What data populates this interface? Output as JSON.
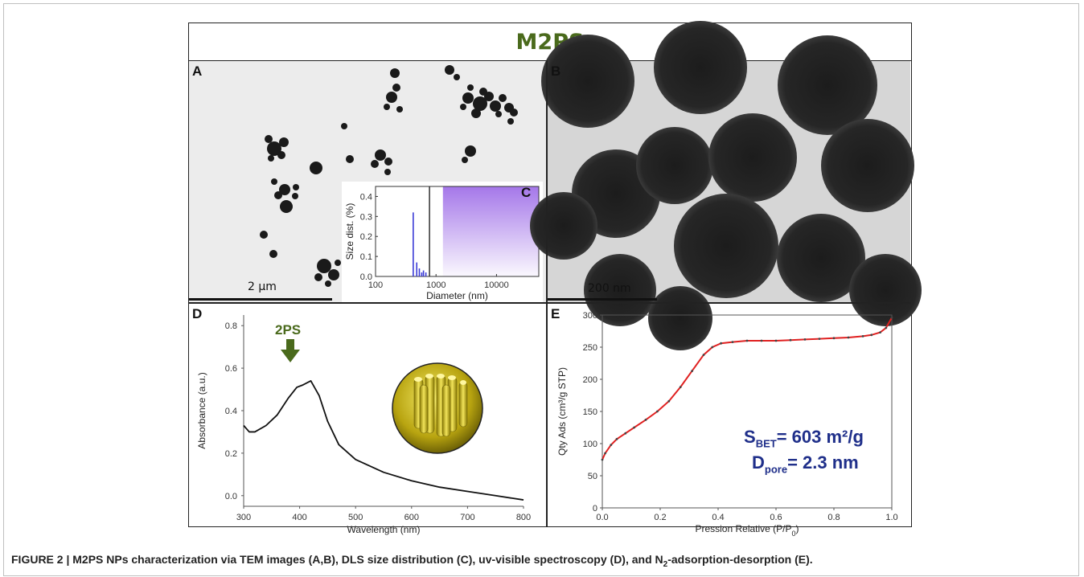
{
  "figure": {
    "title": "M2PS",
    "panels": {
      "a": "A",
      "b": "B",
      "c": "C",
      "d": "D",
      "e": "E"
    },
    "scale_a": "2 µm",
    "scale_b": "200 nm",
    "arrow_label": "2PS",
    "bet": {
      "s_main": "S",
      "s_sub": "BET",
      "s_val": "= 603 m²/g",
      "d_main": "D",
      "d_sub": "pore",
      "d_val": "= 2.3 nm"
    },
    "caption": {
      "main": "FIGURE 2 | M2PS NPs characterization via TEM images (A,B), DLS size distribution (C), uv-visible spectroscopy (D), and N",
      "sub": "2",
      "tail": "-adsorption-desorption (E)."
    }
  },
  "chart_data": [
    {
      "id": "C",
      "type": "bar",
      "xlabel": "Diameter (nm)",
      "ylabel": "Size dist. (%)",
      "xscale": "log",
      "xlim": [
        100,
        50000
      ],
      "ylim": [
        0,
        0.45
      ],
      "xticks": [
        100,
        1000,
        10000
      ],
      "xticklabels": [
        "100",
        "1000",
        "10000"
      ],
      "yticks": [
        0,
        0.1,
        0.2,
        0.3,
        0.4
      ],
      "yticklabels": [
        "0.0",
        "0.1",
        "0.2",
        "0.3",
        "0.4"
      ],
      "bars": [
        {
          "x": 420,
          "y": 0.32
        },
        {
          "x": 480,
          "y": 0.07
        },
        {
          "x": 530,
          "y": 0.04
        },
        {
          "x": 580,
          "y": 0.02
        },
        {
          "x": 620,
          "y": 0.03
        },
        {
          "x": 680,
          "y": 0.02
        }
      ],
      "colors": {
        "bar": "#3b3bd6",
        "shade": "#a070e8"
      }
    },
    {
      "id": "D",
      "type": "line",
      "xlabel": "Wavelength  (nm)",
      "ylabel": "Absorbance (a.u.)",
      "xlim": [
        300,
        800
      ],
      "ylim": [
        -0.05,
        0.85
      ],
      "xticks": [
        300,
        400,
        500,
        600,
        700,
        800
      ],
      "yticks": [
        0,
        0.2,
        0.4,
        0.6,
        0.8
      ],
      "yticklabels": [
        "0.0",
        "0.2",
        "0.4",
        "0.6",
        "0.8"
      ],
      "x": [
        300,
        310,
        320,
        340,
        360,
        380,
        395,
        405,
        420,
        435,
        450,
        470,
        500,
        550,
        600,
        650,
        700,
        750,
        800
      ],
      "y": [
        0.33,
        0.3,
        0.3,
        0.33,
        0.38,
        0.46,
        0.51,
        0.52,
        0.54,
        0.47,
        0.35,
        0.24,
        0.17,
        0.11,
        0.07,
        0.04,
        0.02,
        0.0,
        -0.02
      ],
      "colors": {
        "line": "#111"
      }
    },
    {
      "id": "E",
      "type": "line",
      "xlabel": "Pression Relative (P/P0)",
      "ylabel": "Qty Ads (cm³/g STP)",
      "xlim": [
        0,
        1
      ],
      "ylim": [
        0,
        300
      ],
      "xticks": [
        0,
        0.2,
        0.4,
        0.6,
        0.8,
        1.0
      ],
      "xticklabels": [
        "0.0",
        "0.2",
        "0.4",
        "0.6",
        "0.8",
        "1.0"
      ],
      "yticks": [
        0,
        50,
        100,
        150,
        200,
        250,
        300
      ],
      "x": [
        0,
        0.01,
        0.03,
        0.05,
        0.08,
        0.11,
        0.15,
        0.19,
        0.23,
        0.27,
        0.31,
        0.35,
        0.38,
        0.41,
        0.45,
        0.5,
        0.55,
        0.6,
        0.65,
        0.7,
        0.75,
        0.8,
        0.85,
        0.9,
        0.93,
        0.96,
        0.98,
        1.0
      ],
      "y": [
        75,
        85,
        98,
        107,
        116,
        125,
        137,
        150,
        166,
        188,
        213,
        238,
        250,
        256,
        258,
        260,
        260,
        260,
        261,
        262,
        263,
        264,
        265,
        267,
        269,
        273,
        280,
        296
      ],
      "colors": {
        "line": "#e02020",
        "marker": "#444"
      }
    }
  ]
}
